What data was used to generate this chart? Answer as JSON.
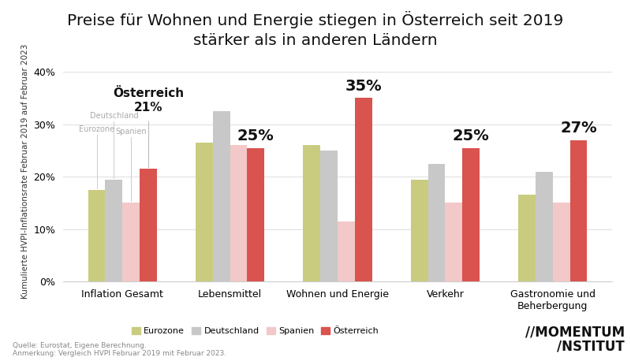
{
  "title": "Preise für Wohnen und Energie stiegen in Österreich seit 2019\nstärker als in anderen Ländern",
  "ylabel": "Kumulierte HVPI-Inflationsrate Februar 2019 auf Februar 2023",
  "categories": [
    "Inflation Gesamt",
    "Lebensmittel",
    "Wohnen und Energie",
    "Verkehr",
    "Gastronomie und\nBeherbergung"
  ],
  "series": {
    "Eurozone": [
      17.5,
      26.5,
      26.0,
      19.5,
      16.5
    ],
    "Deutschland": [
      19.5,
      32.5,
      25.0,
      22.5,
      21.0
    ],
    "Spanien": [
      15.0,
      26.0,
      11.5,
      15.0,
      15.0
    ],
    "Österreich": [
      21.5,
      25.5,
      35.0,
      25.5,
      27.0
    ]
  },
  "colors": {
    "Eurozone": "#c9cc7f",
    "Deutschland": "#c8c8c8",
    "Spanien": "#f2c8c8",
    "Österreich": "#d9534f"
  },
  "ylim": [
    0,
    42
  ],
  "yticks": [
    0,
    10,
    20,
    30,
    40
  ],
  "ytick_labels": [
    "0%",
    "10%",
    "20%",
    "30%",
    "40%"
  ],
  "source_text": "Quelle: Eurostat, Eigene Berechnung.\nAnmerkung: Vergleich HVPI Februar 2019 mit Februar 2023.",
  "legend_order": [
    "Eurozone",
    "Deutschland",
    "Spanien",
    "Österreich"
  ],
  "bar_width": 0.16,
  "background_color": "#ffffff",
  "title_fontsize": 14.5,
  "axis_label_fontsize": 7.5,
  "tick_fontsize": 9
}
